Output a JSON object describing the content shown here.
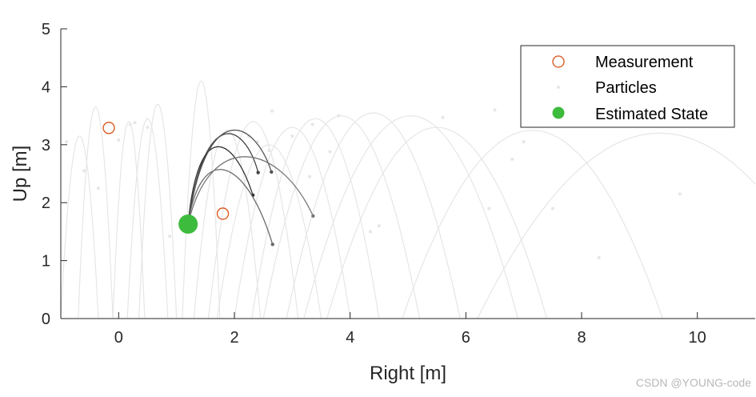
{
  "chart_data": {
    "type": "scatter",
    "xlabel": "Right [m]",
    "ylabel": "Up [m]",
    "xlim": [
      -1,
      11
    ],
    "ylim": [
      0,
      5
    ],
    "xticks": [
      0,
      2,
      4,
      6,
      8,
      10
    ],
    "yticks": [
      0,
      1,
      2,
      3,
      4,
      5
    ],
    "grid": false,
    "legend_position": "top-right",
    "series": [
      {
        "name": "Measurement",
        "marker": "open-circle",
        "color": "#D95319",
        "points": [
          [
            -0.17,
            3.29
          ],
          [
            1.8,
            1.81
          ]
        ]
      },
      {
        "name": "Particles",
        "marker": "dot",
        "color": "#E6E6E6",
        "points": [
          [
            -0.9,
            3.05
          ],
          [
            -0.6,
            2.55
          ],
          [
            -0.35,
            2.25
          ],
          [
            0.0,
            3.08
          ],
          [
            0.2,
            3.35
          ],
          [
            0.28,
            3.38
          ],
          [
            0.5,
            3.3
          ],
          [
            0.88,
            1.42
          ],
          [
            2.25,
            3.15
          ],
          [
            2.4,
            3.05
          ],
          [
            2.6,
            2.9
          ],
          [
            2.65,
            3.58
          ],
          [
            3.0,
            3.15
          ],
          [
            3.3,
            2.45
          ],
          [
            3.35,
            3.35
          ],
          [
            3.65,
            2.88
          ],
          [
            3.8,
            3.5
          ],
          [
            4.35,
            1.5
          ],
          [
            4.5,
            1.6
          ],
          [
            5.6,
            3.47
          ],
          [
            6.4,
            1.9
          ],
          [
            6.5,
            3.6
          ],
          [
            6.8,
            2.75
          ],
          [
            7.0,
            3.05
          ],
          [
            7.5,
            1.9
          ],
          [
            8.3,
            1.05
          ],
          [
            9.7,
            2.15
          ]
        ]
      },
      {
        "name": "Estimated State",
        "marker": "filled-circle",
        "color": "#3DBB3D",
        "points": [
          [
            1.2,
            1.63
          ]
        ]
      }
    ],
    "highlighted_trajectories": [
      {
        "end": [
          2.41,
          2.52
        ],
        "peak": [
          2.0,
          3.3
        ]
      },
      {
        "end": [
          2.32,
          2.13
        ],
        "peak": [
          1.7,
          3.1
        ]
      },
      {
        "end": [
          2.64,
          2.53
        ],
        "peak": [
          2.1,
          3.37
        ]
      },
      {
        "end": [
          2.66,
          1.28
        ],
        "peak": [
          1.8,
          2.75
        ]
      },
      {
        "end": [
          3.36,
          1.77
        ],
        "peak": [
          2.3,
          2.95
        ]
      }
    ],
    "background_trajectories": [
      {
        "x0": -1.0,
        "x1": -0.35,
        "peak": 3.15
      },
      {
        "x0": -0.7,
        "x1": -0.1,
        "peak": 3.65
      },
      {
        "x0": -0.1,
        "x1": 0.45,
        "peak": 3.4
      },
      {
        "x0": 0.15,
        "x1": 0.85,
        "peak": 3.45
      },
      {
        "x0": 0.35,
        "x1": 1.0,
        "peak": 3.7
      },
      {
        "x0": 1.1,
        "x1": 1.75,
        "peak": 4.1
      },
      {
        "x0": 1.3,
        "x1": 2.45,
        "peak": 3.25
      },
      {
        "x0": 1.55,
        "x1": 3.1,
        "peak": 3.4
      },
      {
        "x0": 1.7,
        "x1": 3.5,
        "peak": 3.0
      },
      {
        "x0": 2.0,
        "x1": 4.0,
        "peak": 3.3
      },
      {
        "x0": 2.3,
        "x1": 4.5,
        "peak": 3.45
      },
      {
        "x0": 2.5,
        "x1": 5.2,
        "peak": 3.5
      },
      {
        "x0": 2.9,
        "x1": 5.9,
        "peak": 3.55
      },
      {
        "x0": 3.2,
        "x1": 6.9,
        "peak": 3.5
      },
      {
        "x0": 3.6,
        "x1": 7.4,
        "peak": 3.3
      },
      {
        "x0": 4.9,
        "x1": 9.4,
        "peak": 3.25
      },
      {
        "x0": 6.2,
        "x1": 12.5,
        "peak": 3.2
      }
    ]
  },
  "legend": {
    "measurement": "Measurement",
    "particles": "Particles",
    "estimated_state": "Estimated State"
  },
  "watermark": "CSDN @YOUNG-code"
}
